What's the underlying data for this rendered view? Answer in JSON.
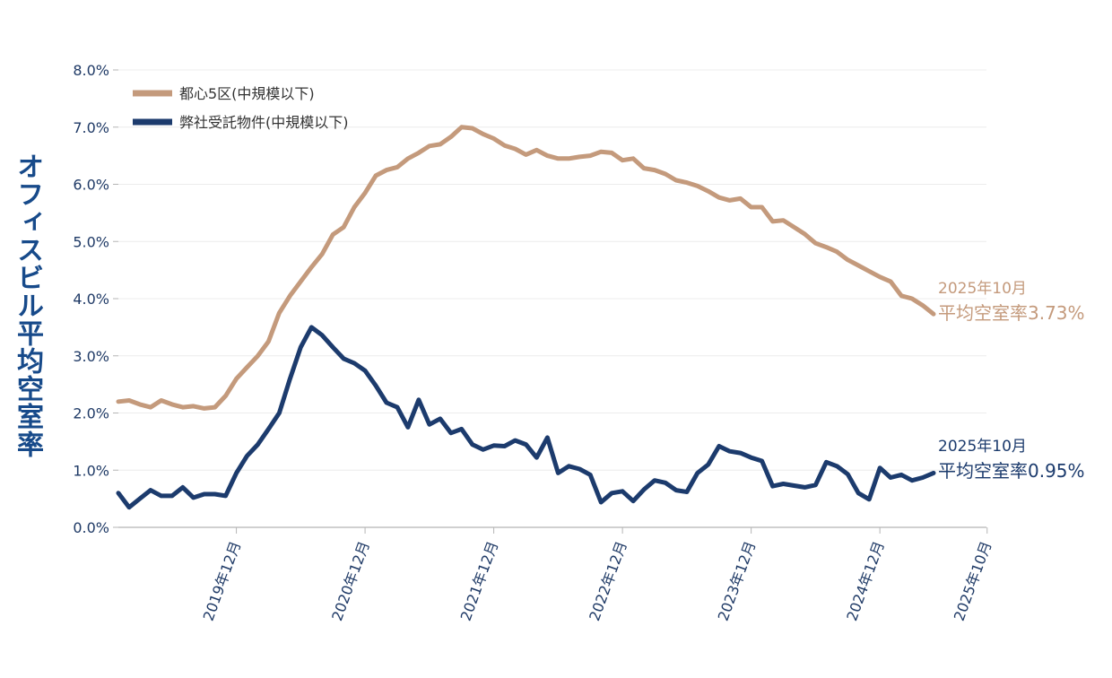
{
  "chart_data": {
    "type": "line",
    "ylabel": "オフィスビル平均空室率",
    "ylim": [
      0,
      8
    ],
    "y_ticks": [
      "0.0%",
      "1.0%",
      "2.0%",
      "3.0%",
      "4.0%",
      "5.0%",
      "6.0%",
      "7.0%",
      "8.0%"
    ],
    "x_start": "2019-01",
    "x_ticks": [
      "2019年12月",
      "2020年12月",
      "2021年12月",
      "2022年12月",
      "2023年12月",
      "2024年12月",
      "2025年10月"
    ],
    "legend_position": "top-left",
    "series": [
      {
        "name": "都心5区(中規模以下)",
        "color": "#c49a7c",
        "values": [
          2.2,
          2.22,
          2.15,
          2.1,
          2.22,
          2.15,
          2.1,
          2.12,
          2.08,
          2.1,
          2.3,
          2.6,
          2.8,
          3.0,
          3.25,
          3.75,
          4.05,
          4.3,
          4.55,
          4.78,
          5.12,
          5.25,
          5.6,
          5.85,
          6.15,
          6.25,
          6.3,
          6.45,
          6.55,
          6.67,
          6.7,
          6.83,
          7.0,
          6.98,
          6.88,
          6.8,
          6.68,
          6.62,
          6.52,
          6.6,
          6.5,
          6.45,
          6.45,
          6.48,
          6.5,
          6.57,
          6.55,
          6.42,
          6.45,
          6.28,
          6.25,
          6.18,
          6.07,
          6.03,
          5.97,
          5.88,
          5.77,
          5.72,
          5.75,
          5.6,
          5.6,
          5.35,
          5.37,
          5.25,
          5.13,
          4.97,
          4.9,
          4.82,
          4.68,
          4.58,
          4.48,
          4.38,
          4.3,
          4.05,
          4.0,
          3.88,
          3.73
        ]
      },
      {
        "name": "弊社受託物件(中規模以下)",
        "color": "#1c3b6d",
        "values": [
          0.6,
          0.35,
          0.5,
          0.65,
          0.55,
          0.55,
          0.7,
          0.52,
          0.58,
          0.58,
          0.55,
          0.95,
          1.25,
          1.45,
          1.72,
          2.0,
          2.6,
          3.15,
          3.5,
          3.36,
          3.15,
          2.95,
          2.87,
          2.74,
          2.48,
          2.18,
          2.1,
          1.75,
          2.23,
          1.8,
          1.9,
          1.65,
          1.72,
          1.45,
          1.36,
          1.43,
          1.42,
          1.52,
          1.45,
          1.22,
          1.57,
          0.95,
          1.07,
          1.02,
          0.92,
          0.44,
          0.6,
          0.63,
          0.46,
          0.66,
          0.82,
          0.78,
          0.65,
          0.62,
          0.95,
          1.1,
          1.42,
          1.33,
          1.3,
          1.22,
          1.16,
          0.72,
          0.76,
          0.73,
          0.7,
          0.74,
          1.14,
          1.07,
          0.93,
          0.6,
          0.49,
          1.04,
          0.87,
          0.92,
          0.82,
          0.87,
          0.95
        ]
      }
    ],
    "annotations": [
      {
        "date": "2025年10月",
        "label": "平均空室率3.73%",
        "color": "#c49a7c"
      },
      {
        "date": "2025年10月",
        "label": "平均空室率0.95%",
        "color": "#1c3b6d"
      }
    ]
  }
}
